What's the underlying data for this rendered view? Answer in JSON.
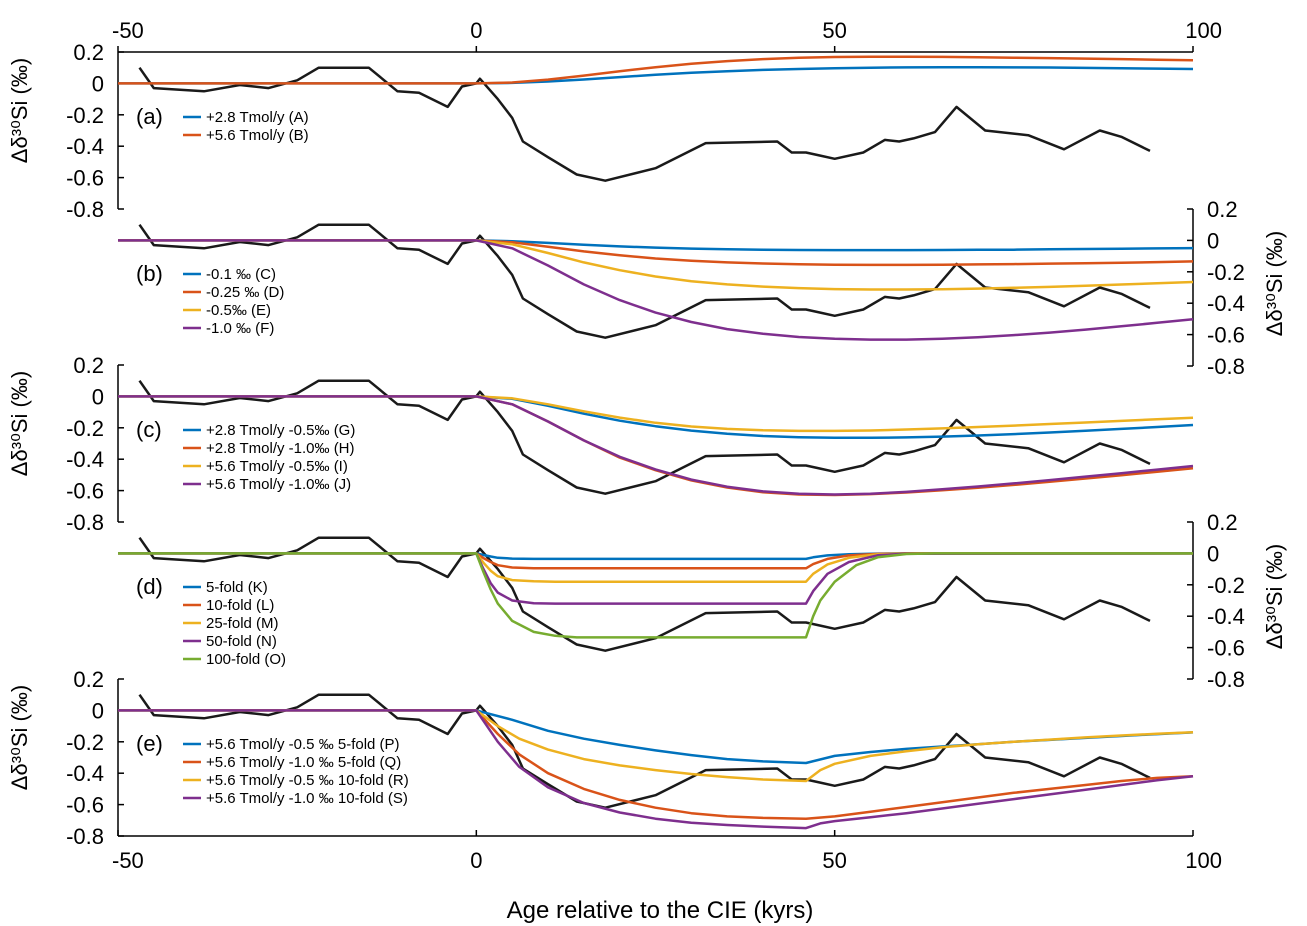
{
  "figure": {
    "xlabel": "Age relative to the CIE (kyrs)",
    "ylabel": "Δδ³⁰Si (‰)",
    "top_xticks": [
      "-50",
      "0",
      "50",
      "100"
    ],
    "bottom_xticks": [
      "-50",
      "0",
      "50",
      "100"
    ]
  },
  "chart_data": [
    {
      "type": "line",
      "panel_label": "(a)",
      "axis_side": "left",
      "xlim": [
        -50,
        100
      ],
      "ylim": [
        -0.8,
        0.2
      ],
      "yticks": [
        "0.2",
        "0",
        "-0.2",
        "-0.4",
        "-0.6",
        "-0.8"
      ],
      "series": [
        {
          "name": "+2.8 Tmol/y (A)",
          "color": "#0072BD",
          "x": [
            -50,
            0,
            5,
            10,
            15,
            20,
            25,
            30,
            35,
            40,
            45,
            50,
            55,
            60,
            65,
            70,
            75,
            80,
            85,
            90,
            95,
            100
          ],
          "y": [
            0,
            0,
            0.003,
            0.012,
            0.025,
            0.04,
            0.055,
            0.068,
            0.078,
            0.086,
            0.092,
            0.097,
            0.1,
            0.102,
            0.103,
            0.103,
            0.102,
            0.101,
            0.099,
            0.097,
            0.094,
            0.092
          ]
        },
        {
          "name": "+5.6 Tmol/y (B)",
          "color": "#D95319",
          "x": [
            -50,
            0,
            5,
            10,
            15,
            20,
            25,
            30,
            35,
            40,
            45,
            50,
            55,
            60,
            65,
            70,
            75,
            80,
            85,
            90,
            95,
            100
          ],
          "y": [
            0,
            0,
            0.006,
            0.024,
            0.05,
            0.078,
            0.103,
            0.125,
            0.142,
            0.155,
            0.163,
            0.168,
            0.17,
            0.17,
            0.169,
            0.167,
            0.164,
            0.161,
            0.158,
            0.155,
            0.151,
            0.147
          ]
        }
      ]
    },
    {
      "type": "line",
      "panel_label": "(b)",
      "axis_side": "right",
      "xlim": [
        -50,
        100
      ],
      "ylim": [
        -0.8,
        0.2
      ],
      "yticks": [
        "0.2",
        "0",
        "-0.2",
        "-0.4",
        "-0.6",
        "-0.8"
      ],
      "series": [
        {
          "name": "-0.1 ‰ (C)",
          "color": "#0072BD",
          "x": [
            -50,
            0,
            5,
            10,
            15,
            20,
            25,
            30,
            35,
            40,
            45,
            50,
            55,
            60,
            65,
            70,
            75,
            80,
            85,
            90,
            95,
            100
          ],
          "y": [
            0,
            0,
            -0.005,
            -0.016,
            -0.028,
            -0.038,
            -0.046,
            -0.052,
            -0.056,
            -0.059,
            -0.061,
            -0.062,
            -0.062,
            -0.062,
            -0.061,
            -0.06,
            -0.059,
            -0.057,
            -0.055,
            -0.053,
            -0.051,
            -0.049
          ]
        },
        {
          "name": "-0.25 ‰ (D)",
          "color": "#D95319",
          "x": [
            -50,
            0,
            5,
            10,
            15,
            20,
            25,
            30,
            35,
            40,
            45,
            50,
            55,
            60,
            65,
            70,
            75,
            80,
            85,
            90,
            95,
            100
          ],
          "y": [
            0,
            0,
            -0.012,
            -0.04,
            -0.07,
            -0.095,
            -0.115,
            -0.13,
            -0.14,
            -0.147,
            -0.152,
            -0.155,
            -0.156,
            -0.156,
            -0.155,
            -0.153,
            -0.151,
            -0.148,
            -0.145,
            -0.142,
            -0.138,
            -0.134
          ]
        },
        {
          "name": "-0.5‰ (E)",
          "color": "#EDB120",
          "x": [
            -50,
            0,
            5,
            10,
            15,
            20,
            25,
            30,
            35,
            40,
            45,
            50,
            55,
            60,
            65,
            70,
            75,
            80,
            85,
            90,
            95,
            100
          ],
          "y": [
            0,
            0,
            -0.025,
            -0.08,
            -0.14,
            -0.19,
            -0.23,
            -0.26,
            -0.28,
            -0.294,
            -0.304,
            -0.31,
            -0.313,
            -0.313,
            -0.311,
            -0.307,
            -0.302,
            -0.296,
            -0.289,
            -0.281,
            -0.273,
            -0.265
          ]
        },
        {
          "name": "-1.0 ‰ (F)",
          "color": "#7E2F8E",
          "x": [
            -50,
            0,
            5,
            10,
            15,
            20,
            25,
            30,
            35,
            40,
            45,
            50,
            55,
            60,
            65,
            70,
            75,
            80,
            85,
            90,
            95,
            100
          ],
          "y": [
            0,
            0,
            -0.05,
            -0.16,
            -0.28,
            -0.38,
            -0.46,
            -0.52,
            -0.565,
            -0.595,
            -0.615,
            -0.627,
            -0.632,
            -0.632,
            -0.627,
            -0.617,
            -0.603,
            -0.587,
            -0.568,
            -0.547,
            -0.525,
            -0.502
          ]
        }
      ]
    },
    {
      "type": "line",
      "panel_label": "(c)",
      "axis_side": "left",
      "xlim": [
        -50,
        100
      ],
      "ylim": [
        -0.8,
        0.2
      ],
      "yticks": [
        "0.2",
        "0",
        "-0.2",
        "-0.4",
        "-0.6",
        "-0.8"
      ],
      "series": [
        {
          "name": "+2.8 Tmol/y -0.5‰ (G)",
          "color": "#0072BD",
          "x": [
            -50,
            0,
            5,
            10,
            15,
            20,
            25,
            30,
            35,
            40,
            45,
            50,
            55,
            60,
            65,
            70,
            75,
            80,
            85,
            90,
            95,
            100
          ],
          "y": [
            0,
            0,
            -0.015,
            -0.06,
            -0.11,
            -0.155,
            -0.19,
            -0.218,
            -0.238,
            -0.252,
            -0.26,
            -0.264,
            -0.264,
            -0.261,
            -0.256,
            -0.249,
            -0.24,
            -0.23,
            -0.219,
            -0.207,
            -0.195,
            -0.182
          ]
        },
        {
          "name": "+2.8 Tmol/y -1.0‰ (H)",
          "color": "#D95319",
          "x": [
            -50,
            0,
            5,
            10,
            15,
            20,
            25,
            30,
            35,
            40,
            45,
            50,
            55,
            60,
            65,
            70,
            75,
            80,
            85,
            90,
            95,
            100
          ],
          "y": [
            0,
            0,
            -0.05,
            -0.16,
            -0.28,
            -0.39,
            -0.47,
            -0.535,
            -0.58,
            -0.61,
            -0.625,
            -0.628,
            -0.622,
            -0.612,
            -0.598,
            -0.582,
            -0.564,
            -0.544,
            -0.523,
            -0.502,
            -0.48,
            -0.458
          ]
        },
        {
          "name": "+5.6 Tmol/y -0.5‰ (I)",
          "color": "#EDB120",
          "x": [
            -50,
            0,
            5,
            10,
            15,
            20,
            25,
            30,
            35,
            40,
            45,
            50,
            55,
            60,
            65,
            70,
            75,
            80,
            85,
            90,
            95,
            100
          ],
          "y": [
            0,
            0,
            -0.012,
            -0.05,
            -0.095,
            -0.135,
            -0.168,
            -0.192,
            -0.207,
            -0.216,
            -0.22,
            -0.22,
            -0.217,
            -0.211,
            -0.204,
            -0.195,
            -0.186,
            -0.176,
            -0.166,
            -0.156,
            -0.146,
            -0.136
          ]
        },
        {
          "name": "+5.6 Tmol/y -1.0‰ (J)",
          "color": "#7E2F8E",
          "x": [
            -50,
            0,
            5,
            10,
            15,
            20,
            25,
            30,
            35,
            40,
            45,
            50,
            55,
            60,
            65,
            70,
            75,
            80,
            85,
            90,
            95,
            100
          ],
          "y": [
            0,
            0,
            -0.05,
            -0.16,
            -0.28,
            -0.385,
            -0.465,
            -0.53,
            -0.575,
            -0.605,
            -0.62,
            -0.625,
            -0.62,
            -0.608,
            -0.592,
            -0.574,
            -0.554,
            -0.533,
            -0.511,
            -0.489,
            -0.466,
            -0.443
          ]
        }
      ]
    },
    {
      "type": "line",
      "panel_label": "(d)",
      "axis_side": "right",
      "xlim": [
        -50,
        100
      ],
      "ylim": [
        -0.8,
        0.2
      ],
      "yticks": [
        "0.2",
        "0",
        "-0.2",
        "-0.4",
        "-0.6",
        "-0.8"
      ],
      "series": [
        {
          "name": "5-fold (K)",
          "color": "#0072BD",
          "x": [
            -50,
            0,
            1,
            2,
            3,
            5,
            8,
            46,
            47,
            49,
            52,
            56,
            60,
            100
          ],
          "y": [
            0,
            0,
            -0.01,
            -0.02,
            -0.028,
            -0.033,
            -0.035,
            -0.035,
            -0.025,
            -0.013,
            -0.005,
            -0.001,
            0,
            0
          ]
        },
        {
          "name": "10-fold (L)",
          "color": "#D95319",
          "x": [
            -50,
            0,
            1,
            2,
            3,
            5,
            8,
            46,
            47,
            49,
            52,
            56,
            60,
            100
          ],
          "y": [
            0,
            0,
            -0.03,
            -0.055,
            -0.075,
            -0.09,
            -0.095,
            -0.095,
            -0.068,
            -0.035,
            -0.013,
            -0.003,
            0,
            0
          ]
        },
        {
          "name": "25-fold (M)",
          "color": "#EDB120",
          "x": [
            -50,
            0,
            1,
            2,
            3,
            5,
            8,
            11,
            46,
            47,
            49,
            52,
            56,
            60,
            100
          ],
          "y": [
            0,
            0,
            -0.06,
            -0.11,
            -0.145,
            -0.17,
            -0.178,
            -0.18,
            -0.18,
            -0.13,
            -0.07,
            -0.028,
            -0.006,
            -0.001,
            0
          ]
        },
        {
          "name": "50-fold (N)",
          "color": "#7E2F8E",
          "x": [
            -50,
            0,
            1,
            2,
            3,
            5,
            8,
            11,
            46,
            47,
            49,
            52,
            56,
            60,
            100
          ],
          "y": [
            0,
            0,
            -0.1,
            -0.19,
            -0.25,
            -0.3,
            -0.318,
            -0.32,
            -0.32,
            -0.24,
            -0.13,
            -0.055,
            -0.012,
            -0.002,
            0
          ]
        },
        {
          "name": "100-fold (O)",
          "color": "#77AC30",
          "x": [
            -50,
            0,
            1,
            2,
            3,
            5,
            8,
            11,
            14,
            46,
            47,
            48,
            50,
            53,
            56,
            60,
            64,
            100
          ],
          "y": [
            0,
            0,
            -0.12,
            -0.23,
            -0.32,
            -0.43,
            -0.5,
            -0.525,
            -0.535,
            -0.535,
            -0.4,
            -0.3,
            -0.18,
            -0.075,
            -0.025,
            -0.004,
            0,
            0
          ]
        }
      ]
    },
    {
      "type": "line",
      "panel_label": "(e)",
      "axis_side": "left",
      "xlim": [
        -50,
        100
      ],
      "ylim": [
        -0.8,
        0.2
      ],
      "yticks": [
        "0.2",
        "0",
        "-0.2",
        "-0.4",
        "-0.6",
        "-0.8"
      ],
      "series": [
        {
          "name": "+5.6 Tmol/y -0.5 ‰ 5-fold (P)",
          "color": "#0072BD",
          "x": [
            -50,
            0,
            5,
            10,
            15,
            20,
            25,
            30,
            35,
            40,
            46,
            50,
            55,
            60,
            65,
            70,
            75,
            80,
            85,
            90,
            95,
            100
          ],
          "y": [
            0,
            0,
            -0.06,
            -0.13,
            -0.18,
            -0.22,
            -0.255,
            -0.285,
            -0.31,
            -0.325,
            -0.335,
            -0.29,
            -0.265,
            -0.245,
            -0.23,
            -0.215,
            -0.2,
            -0.188,
            -0.175,
            -0.163,
            -0.151,
            -0.14
          ]
        },
        {
          "name": "+5.6 Tmol/y -1.0 ‰ 5-fold (Q)",
          "color": "#D95319",
          "x": [
            -50,
            0,
            3,
            6,
            10,
            15,
            20,
            25,
            30,
            35,
            40,
            46,
            50,
            55,
            60,
            65,
            70,
            75,
            80,
            85,
            90,
            95,
            100
          ],
          "y": [
            0,
            0,
            -0.15,
            -0.28,
            -0.4,
            -0.5,
            -0.57,
            -0.62,
            -0.655,
            -0.675,
            -0.685,
            -0.69,
            -0.675,
            -0.645,
            -0.615,
            -0.585,
            -0.555,
            -0.525,
            -0.5,
            -0.475,
            -0.45,
            -0.43,
            -0.42
          ]
        },
        {
          "name": "+5.6 Tmol/y -0.5 ‰ 10-fold (R)",
          "color": "#EDB120",
          "x": [
            -50,
            0,
            3,
            6,
            10,
            15,
            20,
            25,
            30,
            35,
            40,
            46,
            48,
            50,
            55,
            60,
            65,
            70,
            75,
            80,
            85,
            90,
            95,
            100
          ],
          "y": [
            0,
            0,
            -0.1,
            -0.18,
            -0.25,
            -0.31,
            -0.35,
            -0.38,
            -0.405,
            -0.425,
            -0.44,
            -0.45,
            -0.38,
            -0.34,
            -0.29,
            -0.26,
            -0.235,
            -0.215,
            -0.2,
            -0.186,
            -0.172,
            -0.16,
            -0.149,
            -0.139
          ]
        },
        {
          "name": "+5.6 Tmol/y -1.0 ‰ 10-fold (S)",
          "color": "#7E2F8E",
          "x": [
            -50,
            0,
            3,
            6,
            10,
            15,
            20,
            25,
            30,
            35,
            40,
            46,
            48,
            50,
            55,
            60,
            65,
            70,
            75,
            80,
            85,
            90,
            95,
            100
          ],
          "y": [
            0,
            0,
            -0.2,
            -0.36,
            -0.49,
            -0.59,
            -0.65,
            -0.69,
            -0.715,
            -0.73,
            -0.74,
            -0.75,
            -0.72,
            -0.705,
            -0.68,
            -0.655,
            -0.625,
            -0.595,
            -0.565,
            -0.535,
            -0.505,
            -0.475,
            -0.445,
            -0.42
          ]
        }
      ]
    }
  ],
  "observed_record": {
    "color": "#1a1a1a",
    "x": [
      -47,
      -45,
      -38,
      -33,
      -29,
      -25,
      -22,
      -18,
      -15,
      -11,
      -8,
      -4,
      -2,
      0,
      0.5,
      3,
      5,
      6.5,
      10,
      14,
      18,
      25,
      32,
      42,
      44,
      46,
      48,
      50,
      54,
      57,
      59,
      61,
      64,
      67,
      71,
      77,
      82,
      87,
      90,
      94
    ],
    "y": [
      0.1,
      -0.03,
      -0.05,
      -0.01,
      -0.03,
      0.02,
      0.1,
      0.1,
      0.1,
      -0.05,
      -0.06,
      -0.15,
      -0.02,
      0,
      0.03,
      -0.1,
      -0.22,
      -0.37,
      -0.47,
      -0.58,
      -0.62,
      -0.54,
      -0.38,
      -0.37,
      -0.44,
      -0.44,
      -0.46,
      -0.48,
      -0.44,
      -0.36,
      -0.37,
      -0.35,
      -0.31,
      -0.15,
      -0.3,
      -0.33,
      -0.42,
      -0.3,
      -0.34,
      -0.43
    ]
  }
}
